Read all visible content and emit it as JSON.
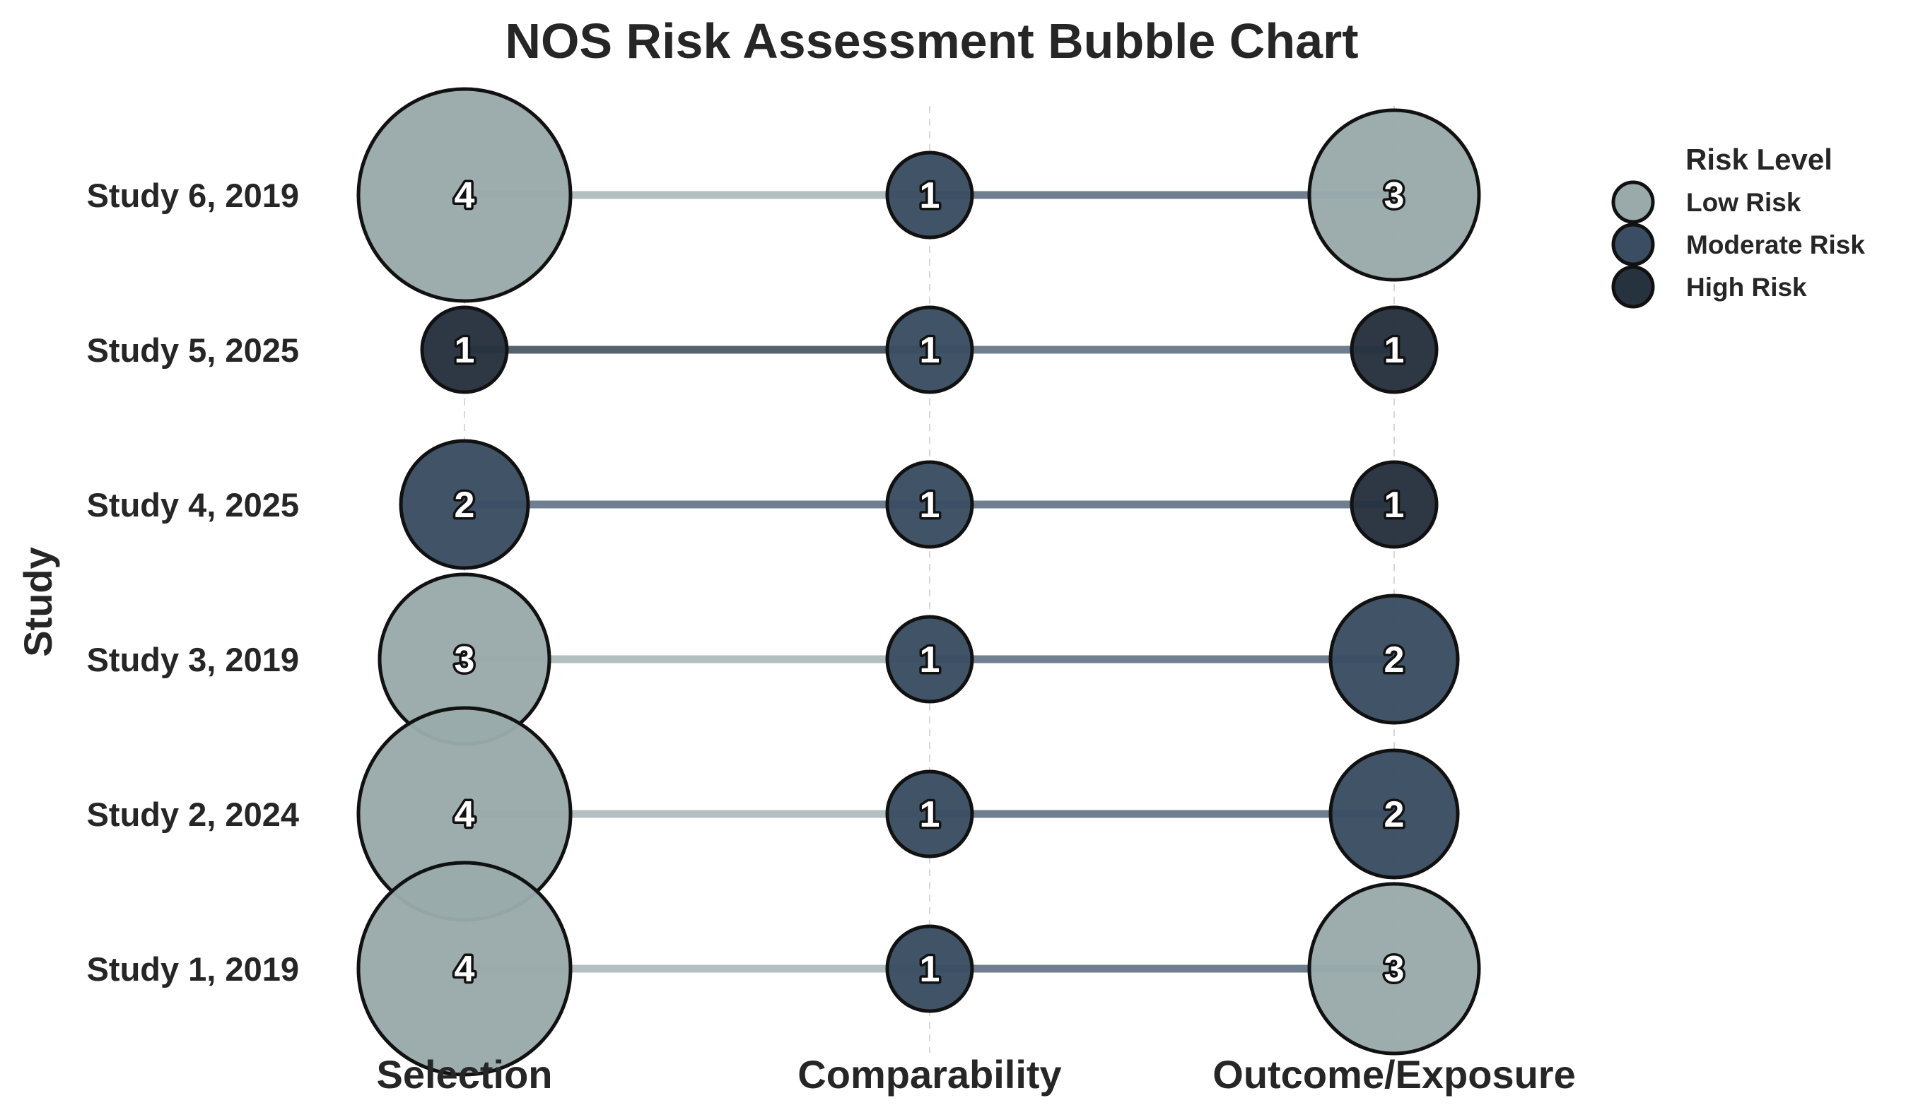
{
  "chart_data": {
    "type": "scatter",
    "title": "NOS Risk Assessment Bubble Chart",
    "xlabel": "",
    "ylabel": "Study",
    "categories": [
      "Selection",
      "Comparability",
      "Outcome/Exposure"
    ],
    "studies": [
      "Study 1, 2019",
      "Study 2, 2024",
      "Study 3, 2019",
      "Study 4, 2025",
      "Study 5, 2025",
      "Study 6, 2019"
    ],
    "values": [
      [
        4,
        1,
        3
      ],
      [
        4,
        1,
        2
      ],
      [
        3,
        1,
        2
      ],
      [
        2,
        1,
        1
      ],
      [
        1,
        1,
        1
      ],
      [
        4,
        1,
        3
      ]
    ],
    "risk_levels": [
      [
        "Low Risk",
        "Moderate Risk",
        "Low Risk"
      ],
      [
        "Low Risk",
        "Moderate Risk",
        "Moderate Risk"
      ],
      [
        "Low Risk",
        "Moderate Risk",
        "Moderate Risk"
      ],
      [
        "Moderate Risk",
        "Moderate Risk",
        "High Risk"
      ],
      [
        "High Risk",
        "Moderate Risk",
        "High Risk"
      ],
      [
        "Low Risk",
        "Moderate Risk",
        "Low Risk"
      ]
    ],
    "legend": {
      "title": "Risk Level",
      "placement": "top-right",
      "entries": [
        "Low Risk",
        "Moderate Risk",
        "High Risk"
      ]
    },
    "colors": {
      "Low Risk": "#9aaaab",
      "Moderate Risk": "#3b4d62",
      "High Risk": "#27323f"
    },
    "grid": true
  }
}
